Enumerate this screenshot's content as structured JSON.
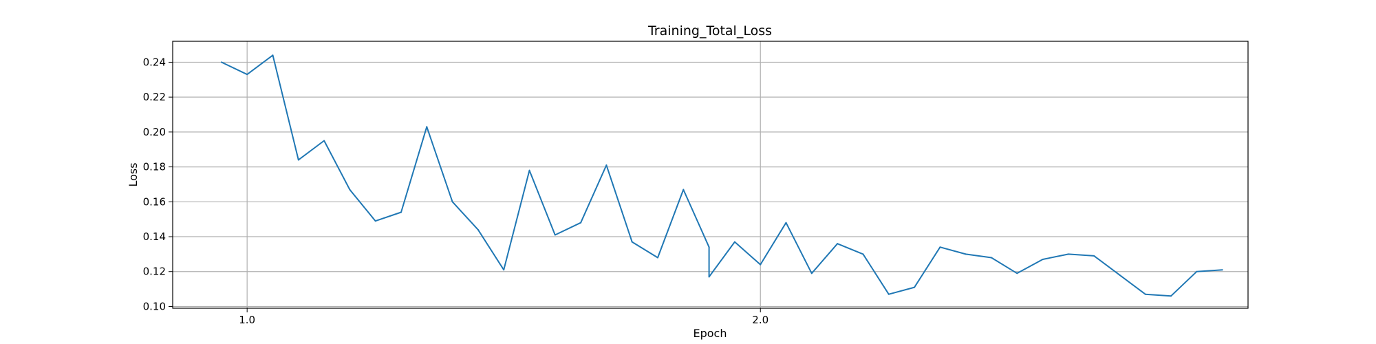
{
  "chart_data": {
    "type": "line",
    "title": "Training_Total_Loss",
    "xlabel": "Epoch",
    "ylabel": "Loss",
    "xlim": [
      0.855,
      2.95
    ],
    "ylim": [
      0.099,
      0.252
    ],
    "xticks": [
      1.0,
      2.0
    ],
    "xtick_labels": [
      "1.0",
      "2.0"
    ],
    "yticks": [
      0.1,
      0.12,
      0.14,
      0.16,
      0.18,
      0.2,
      0.22,
      0.24
    ],
    "ytick_labels": [
      "0.10",
      "0.12",
      "0.14",
      "0.16",
      "0.18",
      "0.20",
      "0.22",
      "0.24"
    ],
    "grid": true,
    "series": [
      {
        "color": "#1f77b4",
        "x": [
          0.95,
          1.0,
          1.05,
          1.1,
          1.15,
          1.2,
          1.25,
          1.3,
          1.35,
          1.4,
          1.45,
          1.5,
          1.55,
          1.6,
          1.65,
          1.7,
          1.75,
          1.8,
          1.85,
          1.9,
          1.9,
          1.95,
          2.0,
          2.05,
          2.1,
          2.15,
          2.2,
          2.25,
          2.3,
          2.35,
          2.4,
          2.45,
          2.5,
          2.55,
          2.6,
          2.65,
          2.7,
          2.75,
          2.8,
          2.85,
          2.9
        ],
        "y": [
          0.24,
          0.233,
          0.244,
          0.184,
          0.195,
          0.167,
          0.149,
          0.154,
          0.203,
          0.16,
          0.144,
          0.121,
          0.178,
          0.141,
          0.148,
          0.181,
          0.137,
          0.128,
          0.167,
          0.134,
          0.117,
          0.137,
          0.124,
          0.148,
          0.119,
          0.136,
          0.13,
          0.107,
          0.111,
          0.134,
          0.13,
          0.128,
          0.119,
          0.127,
          0.13,
          0.129,
          0.118,
          0.107,
          0.106,
          0.12,
          0.121
        ]
      }
    ]
  }
}
